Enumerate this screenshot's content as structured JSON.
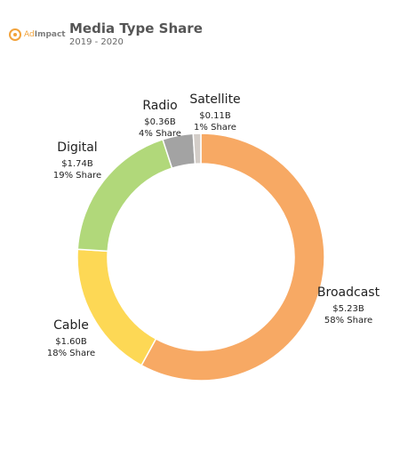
{
  "brand": {
    "name_part1": "Ad",
    "name_part2": "Impact",
    "accent": "#f2a33c"
  },
  "header": {
    "title": "Media Type Share",
    "subtitle": "2019 - 2020"
  },
  "chart_data": {
    "type": "pie",
    "donut": true,
    "title": "Media Type Share",
    "subtitle": "2019 - 2020",
    "slices": [
      {
        "name": "Broadcast",
        "amount": "$5.23B",
        "share_label": "58% Share",
        "share": 58,
        "color": "#f7a964"
      },
      {
        "name": "Cable",
        "amount": "$1.60B",
        "share_label": "18% Share",
        "share": 18,
        "color": "#fdd855"
      },
      {
        "name": "Digital",
        "amount": "$1.74B",
        "share_label": "19% Share",
        "share": 19,
        "color": "#b1d87a"
      },
      {
        "name": "Radio",
        "amount": "$0.36B",
        "share_label": "4% Share",
        "share": 4,
        "color": "#a3a3a3"
      },
      {
        "name": "Satellite",
        "amount": "$0.11B",
        "share_label": "1% Share",
        "share": 1,
        "color": "#d3cdc8"
      }
    ]
  }
}
